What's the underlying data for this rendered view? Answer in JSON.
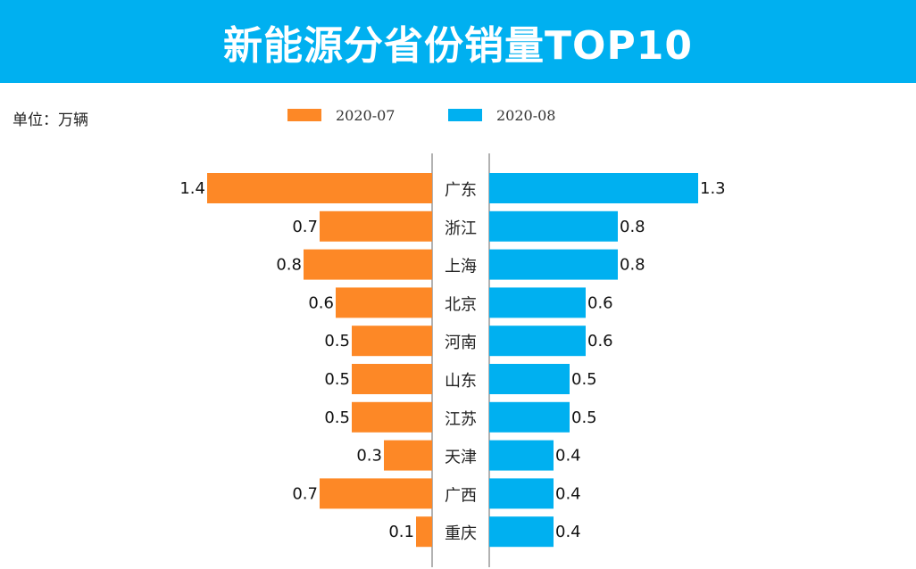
{
  "title": "新能源分省份销量TOP10",
  "unit_label": "单位：万辆",
  "colors": {
    "header_bg": "#00b0f0",
    "left_series": "#fd8826",
    "right_series": "#00b0f0"
  },
  "chart_data": {
    "type": "bar",
    "orientation": "horizontal-butterfly",
    "title": "新能源分省份销量TOP10",
    "unit": "万辆",
    "categories": [
      "广东",
      "浙江",
      "上海",
      "北京",
      "河南",
      "山东",
      "江苏",
      "天津",
      "广西",
      "重庆"
    ],
    "series": [
      {
        "name": "2020-07",
        "side": "left",
        "values": [
          1.4,
          0.7,
          0.8,
          0.6,
          0.5,
          0.5,
          0.5,
          0.3,
          0.7,
          0.1
        ]
      },
      {
        "name": "2020-08",
        "side": "right",
        "values": [
          1.3,
          0.8,
          0.8,
          0.6,
          0.6,
          0.5,
          0.5,
          0.4,
          0.4,
          0.4
        ]
      }
    ],
    "xlim": [
      0,
      1.4
    ],
    "legend": "top-center"
  }
}
